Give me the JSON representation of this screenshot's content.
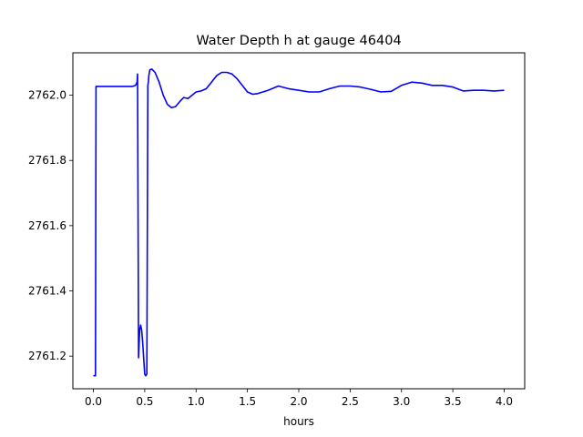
{
  "chart_data": {
    "type": "line",
    "title": "Water Depth h at gauge 46404",
    "xlabel": "hours",
    "ylabel": "",
    "xlim": [
      -0.2,
      4.2
    ],
    "ylim": [
      2761.1,
      2762.13
    ],
    "xticks": [
      0.0,
      0.5,
      1.0,
      1.5,
      2.0,
      2.5,
      3.0,
      3.5,
      4.0
    ],
    "xtick_labels": [
      "0.0",
      "0.5",
      "1.0",
      "1.5",
      "2.0",
      "2.5",
      "3.0",
      "3.5",
      "4.0"
    ],
    "yticks": [
      2761.2,
      2761.4,
      2761.6,
      2761.8,
      2762.0
    ],
    "ytick_labels": [
      "2761.2",
      "2761.4",
      "2761.6",
      "2761.8",
      "2762.0"
    ],
    "grid": false,
    "series": [
      {
        "color": "#0000ff",
        "x": [
          0.0,
          0.02,
          0.025,
          0.05,
          0.1,
          0.2,
          0.3,
          0.38,
          0.41,
          0.425,
          0.43,
          0.44,
          0.45,
          0.46,
          0.47,
          0.48,
          0.49,
          0.5,
          0.51,
          0.52,
          0.53,
          0.535,
          0.54,
          0.55,
          0.57,
          0.6,
          0.64,
          0.68,
          0.72,
          0.76,
          0.8,
          0.84,
          0.88,
          0.92,
          0.96,
          1.0,
          1.05,
          1.1,
          1.15,
          1.2,
          1.25,
          1.3,
          1.35,
          1.4,
          1.45,
          1.5,
          1.55,
          1.6,
          1.7,
          1.8,
          1.9,
          2.0,
          2.1,
          2.2,
          2.3,
          2.4,
          2.5,
          2.6,
          2.7,
          2.8,
          2.9,
          3.0,
          3.1,
          3.2,
          3.3,
          3.4,
          3.5,
          3.6,
          3.7,
          3.8,
          3.9,
          4.0
        ],
        "y": [
          2761.14,
          2761.14,
          2762.027,
          2762.027,
          2762.027,
          2762.027,
          2762.027,
          2762.027,
          2762.03,
          2762.04,
          2762.065,
          2761.195,
          2761.28,
          2761.295,
          2761.28,
          2761.24,
          2761.19,
          2761.145,
          2761.14,
          2761.145,
          2762.03,
          2762.04,
          2762.06,
          2762.078,
          2762.08,
          2762.07,
          2762.04,
          2762.0,
          2761.972,
          2761.962,
          2761.965,
          2761.98,
          2761.993,
          2761.99,
          2762.0,
          2762.01,
          2762.013,
          2762.02,
          2762.04,
          2762.06,
          2762.07,
          2762.07,
          2762.065,
          2762.05,
          2762.03,
          2762.01,
          2762.003,
          2762.005,
          2762.015,
          2762.028,
          2762.02,
          2762.015,
          2762.01,
          2762.01,
          2762.02,
          2762.028,
          2762.028,
          2762.025,
          2762.018,
          2762.01,
          2762.012,
          2762.03,
          2762.04,
          2762.037,
          2762.03,
          2762.03,
          2762.025,
          2762.013,
          2762.015,
          2762.015,
          2762.013,
          2762.015
        ]
      }
    ]
  }
}
